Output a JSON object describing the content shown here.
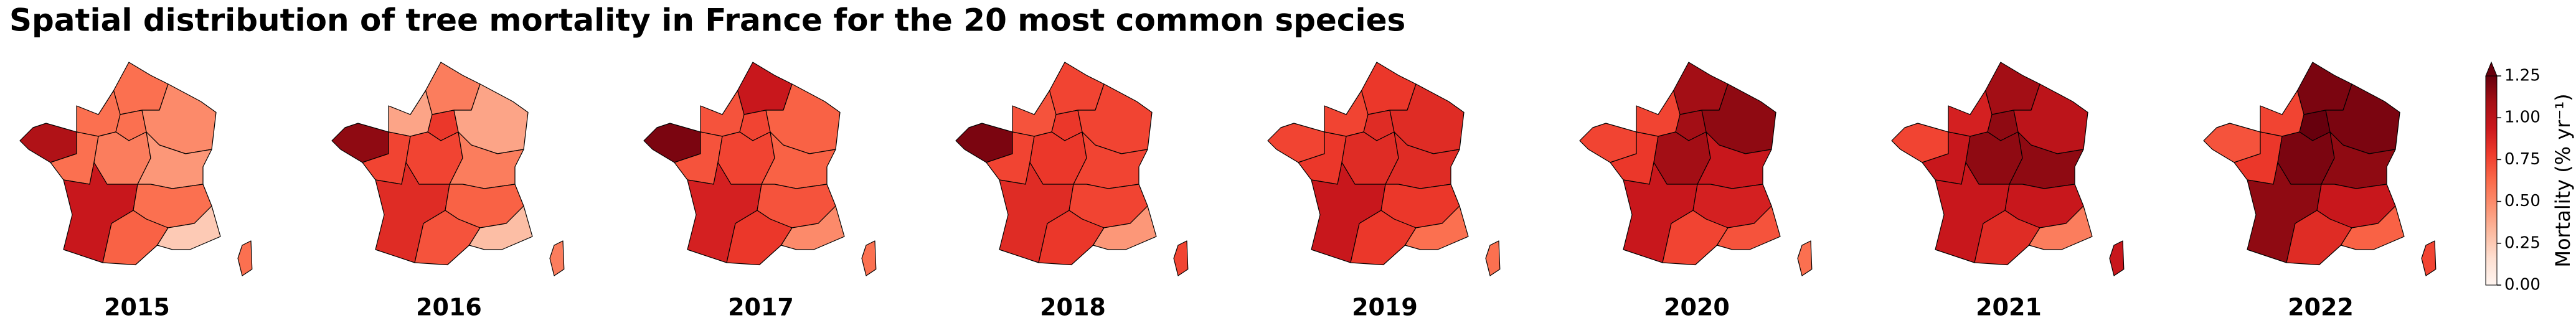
{
  "chart_data": {
    "type": "choropleth",
    "title": "Spatial distribution of tree mortality in France for the 20 most common species",
    "colormap": [
      "#fff5f0",
      "#fee0d2",
      "#fcbba1",
      "#fc9272",
      "#fb6a4a",
      "#ef3b2c",
      "#cb181d",
      "#a50f15",
      "#67000d"
    ],
    "colorbar": {
      "label": "Mortality (% yr⁻¹)",
      "ylim": [
        0,
        1.25
      ],
      "extend_max": true,
      "yticks": [
        {
          "value": 0,
          "label": "0.00"
        },
        {
          "value": 0.25,
          "label": "0.25"
        },
        {
          "value": 0.5,
          "label": "0.50"
        },
        {
          "value": 0.75,
          "label": "0.75"
        },
        {
          "value": 1,
          "label": "1.00"
        },
        {
          "value": 1.25,
          "label": "1.25"
        }
      ]
    },
    "maps": [
      {
        "label": "2015",
        "values": [
          0.6,
          0.6,
          0.6,
          0.5,
          1.05,
          0.6,
          0.55,
          0.45,
          0.95,
          0.6,
          0.65,
          0.25,
          0.6
        ]
      },
      {
        "label": "2016",
        "values": [
          0.55,
          0.4,
          0.8,
          0.4,
          1.15,
          0.75,
          0.75,
          0.55,
          0.85,
          0.65,
          0.7,
          0.3,
          0.55
        ]
      },
      {
        "label": "2017",
        "values": [
          0.95,
          0.7,
          0.75,
          0.65,
          1.2,
          0.7,
          0.75,
          0.65,
          0.9,
          0.7,
          0.8,
          0.5,
          0.6
        ]
      },
      {
        "label": "2018",
        "values": [
          0.75,
          0.7,
          0.8,
          0.75,
          1.2,
          0.75,
          0.8,
          0.75,
          0.85,
          0.75,
          0.8,
          0.45,
          0.75
        ]
      },
      {
        "label": "2019",
        "values": [
          0.8,
          0.75,
          0.85,
          0.85,
          0.75,
          0.8,
          0.85,
          0.85,
          0.95,
          0.8,
          0.8,
          0.6,
          0.6
        ]
      },
      {
        "label": "2020",
        "values": [
          1.1,
          0.75,
          1.1,
          1.15,
          0.75,
          0.8,
          1.1,
          0.95,
          0.95,
          0.9,
          0.75,
          0.7,
          0.6
        ]
      },
      {
        "label": "2021",
        "values": [
          1.1,
          0.9,
          1.15,
          1.0,
          0.75,
          0.95,
          1.15,
          1.15,
          0.95,
          0.95,
          0.85,
          0.55,
          0.95
        ]
      },
      {
        "label": "2022",
        "values": [
          1.2,
          0.75,
          1.25,
          1.2,
          0.7,
          0.8,
          1.2,
          1.15,
          1.15,
          0.95,
          0.85,
          0.65,
          0.75
        ]
      }
    ]
  }
}
